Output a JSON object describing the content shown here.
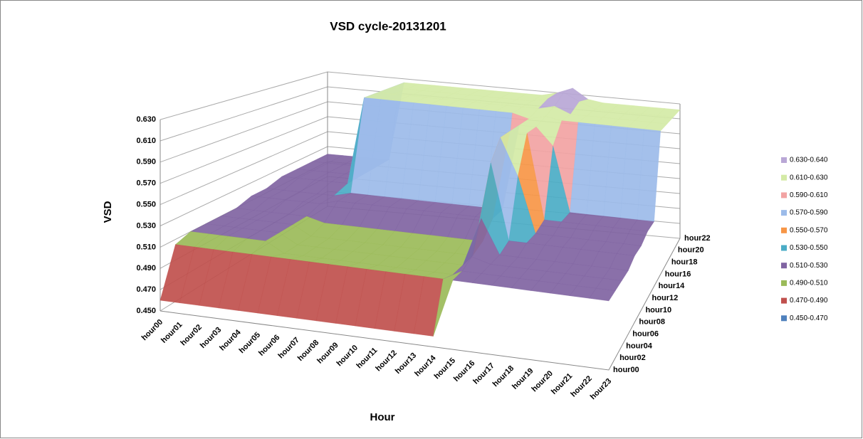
{
  "chart_data": {
    "type": "surface",
    "title": "VSD cycle-20131201",
    "y_label": "VSD",
    "x_label": "Hour",
    "categories": [
      "hour00",
      "hour01",
      "hour02",
      "hour03",
      "hour04",
      "hour05",
      "hour06",
      "hour07",
      "hour08",
      "hour09",
      "hour10",
      "hour11",
      "hour12",
      "hour13",
      "hour14",
      "hour15",
      "hour16",
      "hour17",
      "hour18",
      "hour19",
      "hour20",
      "hour21",
      "hour22",
      "hour23"
    ],
    "depth_categories": [
      "hour00",
      "hour02",
      "hour04",
      "hour06",
      "hour08",
      "hour10",
      "hour12",
      "hour14",
      "hour16",
      "hour18",
      "hour20",
      "hour22"
    ],
    "ylim": [
      0.45,
      0.64
    ],
    "yticks": [
      {
        "value": 0.45,
        "label": "0.450"
      },
      {
        "value": 0.47,
        "label": "0.470"
      },
      {
        "value": 0.49,
        "label": "0.490"
      },
      {
        "value": 0.51,
        "label": "0.510"
      },
      {
        "value": 0.53,
        "label": "0.530"
      },
      {
        "value": 0.55,
        "label": "0.550"
      },
      {
        "value": 0.57,
        "label": "0.570"
      },
      {
        "value": 0.59,
        "label": "0.590"
      },
      {
        "value": 0.61,
        "label": "0.610"
      },
      {
        "value": 0.63,
        "label": "0.630"
      }
    ],
    "bands": [
      {
        "name": "0.630-0.640",
        "min": 0.63,
        "max": 0.64,
        "color": "#b9a7d6"
      },
      {
        "name": "0.610-0.630",
        "min": 0.61,
        "max": 0.63,
        "color": "#d4eaa6"
      },
      {
        "name": "0.590-0.610",
        "min": 0.59,
        "max": 0.61,
        "color": "#f2a3a3"
      },
      {
        "name": "0.570-0.590",
        "min": 0.57,
        "max": 0.59,
        "color": "#9cbbe9"
      },
      {
        "name": "0.550-0.570",
        "min": 0.55,
        "max": 0.57,
        "color": "#f79646"
      },
      {
        "name": "0.530-0.550",
        "min": 0.53,
        "max": 0.55,
        "color": "#4bacc6"
      },
      {
        "name": "0.510-0.530",
        "min": 0.51,
        "max": 0.53,
        "color": "#8064a2"
      },
      {
        "name": "0.490-0.510",
        "min": 0.49,
        "max": 0.51,
        "color": "#9bbb59"
      },
      {
        "name": "0.470-0.490",
        "min": 0.47,
        "max": 0.49,
        "color": "#c0504d"
      },
      {
        "name": "0.450-0.470",
        "min": 0.45,
        "max": 0.47,
        "color": "#4f81bd"
      }
    ],
    "z": [
      [
        0.46,
        0.46,
        0.46,
        0.46,
        0.46,
        0.46,
        0.46,
        0.46,
        0.46,
        0.46,
        0.46,
        0.46,
        0.46,
        0.46,
        0.46,
        0.515,
        0.515,
        0.515,
        0.515,
        0.515,
        0.515,
        0.515,
        0.515,
        0.515
      ],
      [
        0.505,
        0.505,
        0.505,
        0.505,
        0.505,
        0.505,
        0.505,
        0.505,
        0.505,
        0.505,
        0.505,
        0.505,
        0.505,
        0.505,
        0.505,
        0.515,
        0.515,
        0.515,
        0.515,
        0.515,
        0.515,
        0.515,
        0.515,
        0.515
      ],
      [
        0.51,
        0.51,
        0.51,
        0.51,
        0.51,
        0.5,
        0.5,
        0.5,
        0.5,
        0.5,
        0.5,
        0.5,
        0.5,
        0.5,
        0.5,
        0.52,
        0.515,
        0.515,
        0.515,
        0.515,
        0.515,
        0.515,
        0.515,
        0.515
      ],
      [
        0.51,
        0.51,
        0.51,
        0.51,
        0.51,
        0.5,
        0.5,
        0.5,
        0.5,
        0.5,
        0.5,
        0.5,
        0.5,
        0.5,
        0.5,
        0.55,
        0.515,
        0.515,
        0.515,
        0.515,
        0.515,
        0.515,
        0.515,
        0.515
      ],
      [
        0.51,
        0.51,
        0.51,
        0.51,
        0.51,
        0.5,
        0.5,
        0.5,
        0.5,
        0.5,
        0.5,
        0.5,
        0.5,
        0.5,
        0.5,
        0.6,
        0.52,
        0.52,
        0.52,
        0.52,
        0.52,
        0.52,
        0.52,
        0.52
      ],
      [
        0.51,
        0.51,
        0.51,
        0.51,
        0.51,
        0.505,
        0.505,
        0.505,
        0.505,
        0.505,
        0.505,
        0.505,
        0.505,
        0.505,
        0.505,
        0.62,
        0.58,
        0.52,
        0.52,
        0.52,
        0.52,
        0.52,
        0.52,
        0.52
      ],
      [
        0.515,
        0.515,
        0.515,
        0.515,
        0.515,
        0.52,
        0.52,
        0.52,
        0.52,
        0.52,
        0.52,
        0.52,
        0.52,
        0.52,
        0.52,
        0.62,
        0.62,
        0.525,
        0.525,
        0.525,
        0.525,
        0.525,
        0.525,
        0.525
      ],
      [
        0.515,
        0.515,
        0.515,
        0.515,
        0.515,
        0.52,
        0.52,
        0.52,
        0.52,
        0.52,
        0.52,
        0.52,
        0.52,
        0.52,
        0.52,
        0.62,
        0.62,
        0.6,
        0.525,
        0.525,
        0.525,
        0.525,
        0.525,
        0.525
      ],
      [
        0.52,
        0.52,
        0.52,
        0.52,
        0.52,
        0.625,
        0.625,
        0.625,
        0.625,
        0.625,
        0.625,
        0.625,
        0.625,
        0.625,
        0.625,
        0.62,
        0.625,
        0.622,
        0.622,
        0.622,
        0.622,
        0.622,
        0.622,
        0.622
      ],
      [
        0.52,
        0.52,
        0.52,
        0.52,
        0.52,
        0.625,
        0.625,
        0.625,
        0.625,
        0.625,
        0.625,
        0.625,
        0.625,
        0.625,
        0.625,
        0.625,
        0.63,
        0.622,
        0.622,
        0.622,
        0.622,
        0.622,
        0.622,
        0.622
      ],
      [
        0.52,
        0.52,
        0.52,
        0.52,
        0.52,
        0.625,
        0.625,
        0.625,
        0.625,
        0.625,
        0.625,
        0.625,
        0.625,
        0.625,
        0.625,
        0.63,
        0.64,
        0.63,
        0.622,
        0.622,
        0.622,
        0.622,
        0.622,
        0.622
      ],
      [
        0.52,
        0.52,
        0.52,
        0.52,
        0.52,
        0.625,
        0.625,
        0.625,
        0.625,
        0.625,
        0.625,
        0.625,
        0.625,
        0.625,
        0.625,
        0.63,
        0.638,
        0.625,
        0.622,
        0.622,
        0.622,
        0.622,
        0.622,
        0.622
      ]
    ]
  }
}
